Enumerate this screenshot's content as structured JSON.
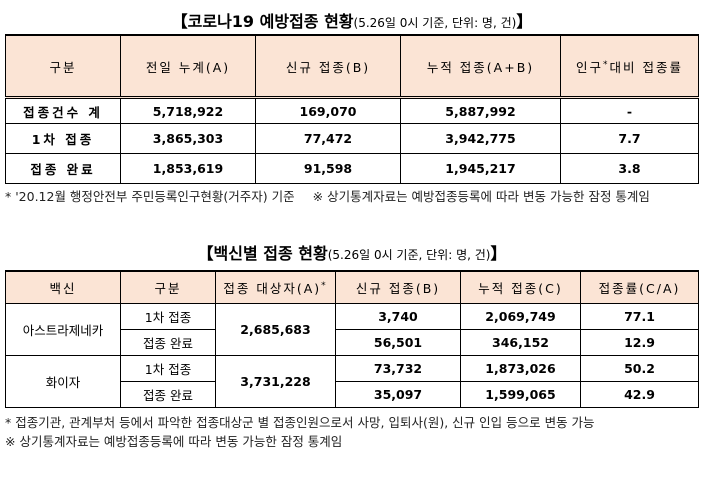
{
  "title1": {
    "main": "【코로나19 예방접종 현황",
    "sub": "(5.26일 0시 기준, 단위: 명, 건)",
    "close": "】"
  },
  "table1": {
    "header": [
      "구분",
      "전일 누계(A)",
      "신규 접종(B)",
      "누적 접종(A+B)",
      {
        "before": "인구",
        "sup": "*",
        "after": "대비 접종률"
      }
    ],
    "rows": [
      [
        "접종건수 계",
        "5,718,922",
        "169,070",
        "5,887,992",
        "-"
      ],
      [
        "1차 접종",
        "3,865,303",
        "77,472",
        "3,942,775",
        "7.7"
      ],
      [
        "접종 완료",
        "1,853,619",
        "91,598",
        "1,945,217",
        "3.8"
      ]
    ]
  },
  "notes1": [
    "* '20.12월 행정안전부 주민등록인구현황(거주자) 기준",
    "※ 상기통계자료는 예방접종등록에 따라 변동 가능한 잠정 통계임"
  ],
  "title2": {
    "main": "【백신별 접종 현황",
    "sub": "(5.26일 0시 기준, 단위: 명, 건)",
    "close": "】"
  },
  "table2": {
    "header": [
      "백신",
      "구분",
      {
        "text": "접종 대상자(A)",
        "sup": "*"
      },
      "신규 접종(B)",
      "누적 접종(C)",
      "접종률(C/A)"
    ],
    "vaccines": [
      {
        "name": "아스트라제네카",
        "target": "2,685,683",
        "rows": [
          [
            "1차 접종",
            "3,740",
            "2,069,749",
            "77.1"
          ],
          [
            "접종 완료",
            "56,501",
            "346,152",
            "12.9"
          ]
        ]
      },
      {
        "name": "화이자",
        "target": "3,731,228",
        "rows": [
          [
            "1차 접종",
            "73,732",
            "1,873,026",
            "50.2"
          ],
          [
            "접종 완료",
            "35,097",
            "1,599,065",
            "42.9"
          ]
        ]
      }
    ]
  },
  "notes2": [
    "* 접종기관, 관계부처 등에서 파악한 접종대상군 별 접종인원으로서 사망, 입퇴사(원), 신규 인입 등으로 변동 가능",
    "※ 상기통계자료는 예방접종등록에 따라 변동 가능한 잠정 통계임"
  ]
}
